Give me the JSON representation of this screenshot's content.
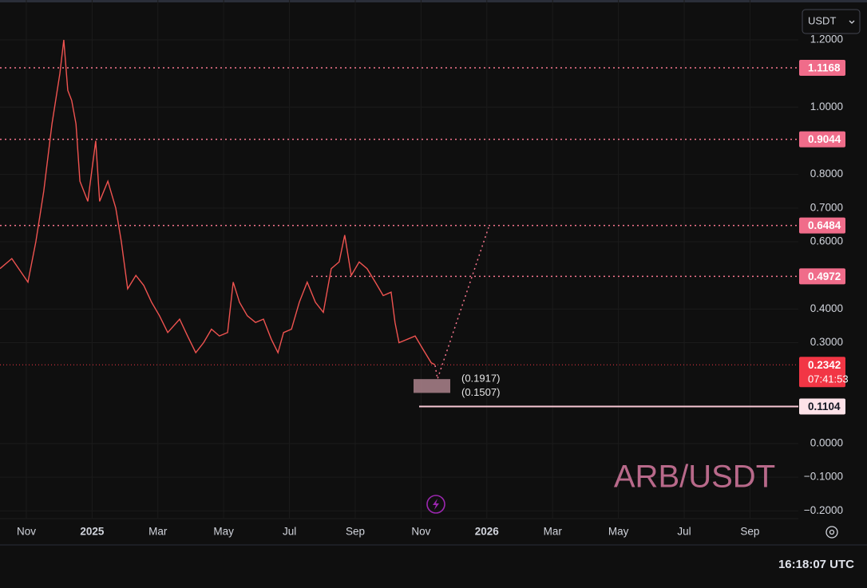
{
  "toolbar": {
    "currency": "USDT"
  },
  "status_bar": {
    "clock": "16:18:07 UTC"
  },
  "chart_data": {
    "type": "line",
    "title": "ARB/USDT",
    "xlim": [
      -0.8,
      23.47
    ],
    "ylim": [
      -0.2229,
      1.3185
    ],
    "xticks": [
      {
        "value": 0,
        "label": "Nov"
      },
      {
        "value": 2,
        "label": "2025"
      },
      {
        "value": 4,
        "label": "Mar"
      },
      {
        "value": 6,
        "label": "May"
      },
      {
        "value": 8,
        "label": "Jul"
      },
      {
        "value": 10,
        "label": "Sep"
      },
      {
        "value": 12,
        "label": "Nov"
      },
      {
        "value": 14,
        "label": "2026"
      },
      {
        "value": 16,
        "label": "Mar"
      },
      {
        "value": 18,
        "label": "May"
      },
      {
        "value": 20,
        "label": "Jul"
      },
      {
        "value": 22,
        "label": "Sep"
      }
    ],
    "yticks": [
      {
        "value": 1.2,
        "label": "1.2000"
      },
      {
        "value": 1.0,
        "label": "1.0000"
      },
      {
        "value": 0.8,
        "label": "0.8000"
      },
      {
        "value": 0.7,
        "label": "0.7000"
      },
      {
        "value": 0.6,
        "label": "0.6000"
      },
      {
        "value": 0.4,
        "label": "0.4000"
      },
      {
        "value": 0.3,
        "label": "0.3000"
      },
      {
        "value": 0,
        "label": "0.0000"
      },
      {
        "value": -0.1,
        "label": "−0.1000"
      },
      {
        "value": -0.2,
        "label": "−0.2000"
      }
    ],
    "grid": true,
    "series": [
      {
        "name": "ARB/USDT",
        "color": "#ef5350",
        "x": [
          -0.8,
          -0.44,
          0.05,
          0.29,
          0.53,
          0.78,
          1.02,
          1.14,
          1.26,
          1.38,
          1.51,
          1.63,
          1.87,
          2.11,
          2.23,
          2.48,
          2.72,
          2.89,
          3.08,
          3.33,
          3.57,
          3.81,
          4.05,
          4.3,
          4.66,
          4.9,
          5.15,
          5.39,
          5.63,
          5.87,
          6.12,
          6.29,
          6.48,
          6.72,
          6.97,
          7.21,
          7.45,
          7.65,
          7.82,
          8.06,
          8.3,
          8.54,
          8.79,
          9.03,
          9.27,
          9.51,
          9.68,
          9.88,
          10.12,
          10.36,
          10.61,
          10.85,
          11.09,
          11.21,
          11.33,
          11.58,
          11.82,
          12.06,
          12.31,
          12.43
        ],
        "values": [
          0.52,
          0.55,
          0.48,
          0.6,
          0.75,
          0.95,
          1.1,
          1.2,
          1.05,
          1.02,
          0.95,
          0.78,
          0.72,
          0.9,
          0.72,
          0.78,
          0.7,
          0.6,
          0.46,
          0.5,
          0.47,
          0.42,
          0.38,
          0.33,
          0.37,
          0.32,
          0.27,
          0.3,
          0.34,
          0.32,
          0.33,
          0.48,
          0.42,
          0.38,
          0.36,
          0.37,
          0.31,
          0.27,
          0.33,
          0.34,
          0.42,
          0.48,
          0.42,
          0.39,
          0.52,
          0.54,
          0.62,
          0.5,
          0.54,
          0.52,
          0.48,
          0.44,
          0.45,
          0.36,
          0.3,
          0.31,
          0.32,
          0.28,
          0.24,
          0.2342
        ]
      }
    ],
    "levels": [
      {
        "value": 1.1168,
        "style": "dotted",
        "color": "#f7768e"
      },
      {
        "value": 0.9044,
        "style": "dotted",
        "color": "#f7768e"
      },
      {
        "value": 0.6484,
        "style": "dotted",
        "color": "#f7768e"
      },
      {
        "value": 0.4972,
        "style": "dotted",
        "color": "#f7768e"
      },
      {
        "value": 0.2342,
        "style": "dotted",
        "color": "#f23645",
        "countdown": "07:41:53"
      },
      {
        "value": 0.1104,
        "style": "solid",
        "color": "#f8c8d4"
      }
    ],
    "annotations": [
      {
        "value": 0.1917,
        "label": "(0.1917)"
      },
      {
        "value": 0.1507,
        "label": "(0.1507)"
      }
    ]
  }
}
